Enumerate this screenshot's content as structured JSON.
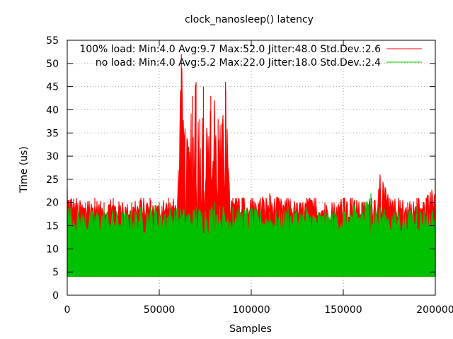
{
  "chart_data": {
    "type": "line",
    "title": "clock_nanosleep() latency",
    "xlabel": "Samples",
    "ylabel": "Time (us)",
    "xlim": [
      0,
      200000
    ],
    "ylim": [
      0,
      55
    ],
    "xticks": [
      "0",
      "50000",
      "100000",
      "150000",
      "200000"
    ],
    "yticks": [
      "0",
      "5",
      "10",
      "15",
      "20",
      "25",
      "30",
      "35",
      "40",
      "45",
      "50",
      "55"
    ],
    "grid": true,
    "legend_position": "top-right",
    "series": [
      {
        "name": "100% load: Min:4.0 Avg:9.7 Max:52.0 Jitter:48.0 Std.Dev.:2.6",
        "color": "#ff0000",
        "min": 4.0,
        "avg": 9.7,
        "max": 52.0,
        "jitter": 48.0,
        "stddev": 2.6,
        "x": [
          0,
          5000,
          10000,
          15000,
          20000,
          25000,
          30000,
          35000,
          40000,
          45000,
          50000,
          55000,
          60000,
          62000,
          64000,
          66000,
          68000,
          70000,
          72000,
          74000,
          76000,
          78000,
          80000,
          82000,
          84000,
          86000,
          88000,
          90000,
          95000,
          100000,
          105000,
          110000,
          115000,
          120000,
          125000,
          130000,
          135000,
          140000,
          145000,
          150000,
          155000,
          160000,
          165000,
          170000,
          175000,
          180000,
          185000,
          190000,
          195000,
          200000
        ],
        "values": [
          23,
          21,
          20,
          21,
          20,
          21,
          20,
          20,
          21,
          21,
          20,
          21,
          21,
          52,
          36,
          32,
          43,
          46,
          38,
          45,
          35,
          43,
          42,
          38,
          37,
          46,
          24,
          21,
          21,
          21,
          21,
          22,
          21,
          21,
          20,
          21,
          21,
          20,
          20,
          21,
          21,
          20,
          21,
          26,
          21,
          21,
          20,
          21,
          21,
          25
        ]
      },
      {
        "name": "no load: Min:4.0 Avg:5.2 Max:22.0 Jitter:18.0 Std.Dev.:2.4",
        "color": "#00c000",
        "min": 4.0,
        "avg": 5.2,
        "max": 22.0,
        "jitter": 18.0,
        "stddev": 2.4,
        "x": [
          0,
          10000,
          20000,
          30000,
          40000,
          50000,
          60000,
          70000,
          80000,
          90000,
          100000,
          110000,
          120000,
          130000,
          140000,
          150000,
          160000,
          165000,
          170000,
          180000,
          190000,
          200000
        ],
        "values": [
          20,
          18,
          19,
          18,
          19,
          20,
          19,
          19,
          20,
          19,
          19,
          18,
          19,
          19,
          18,
          19,
          20,
          22,
          19,
          18,
          19,
          19
        ]
      }
    ]
  }
}
